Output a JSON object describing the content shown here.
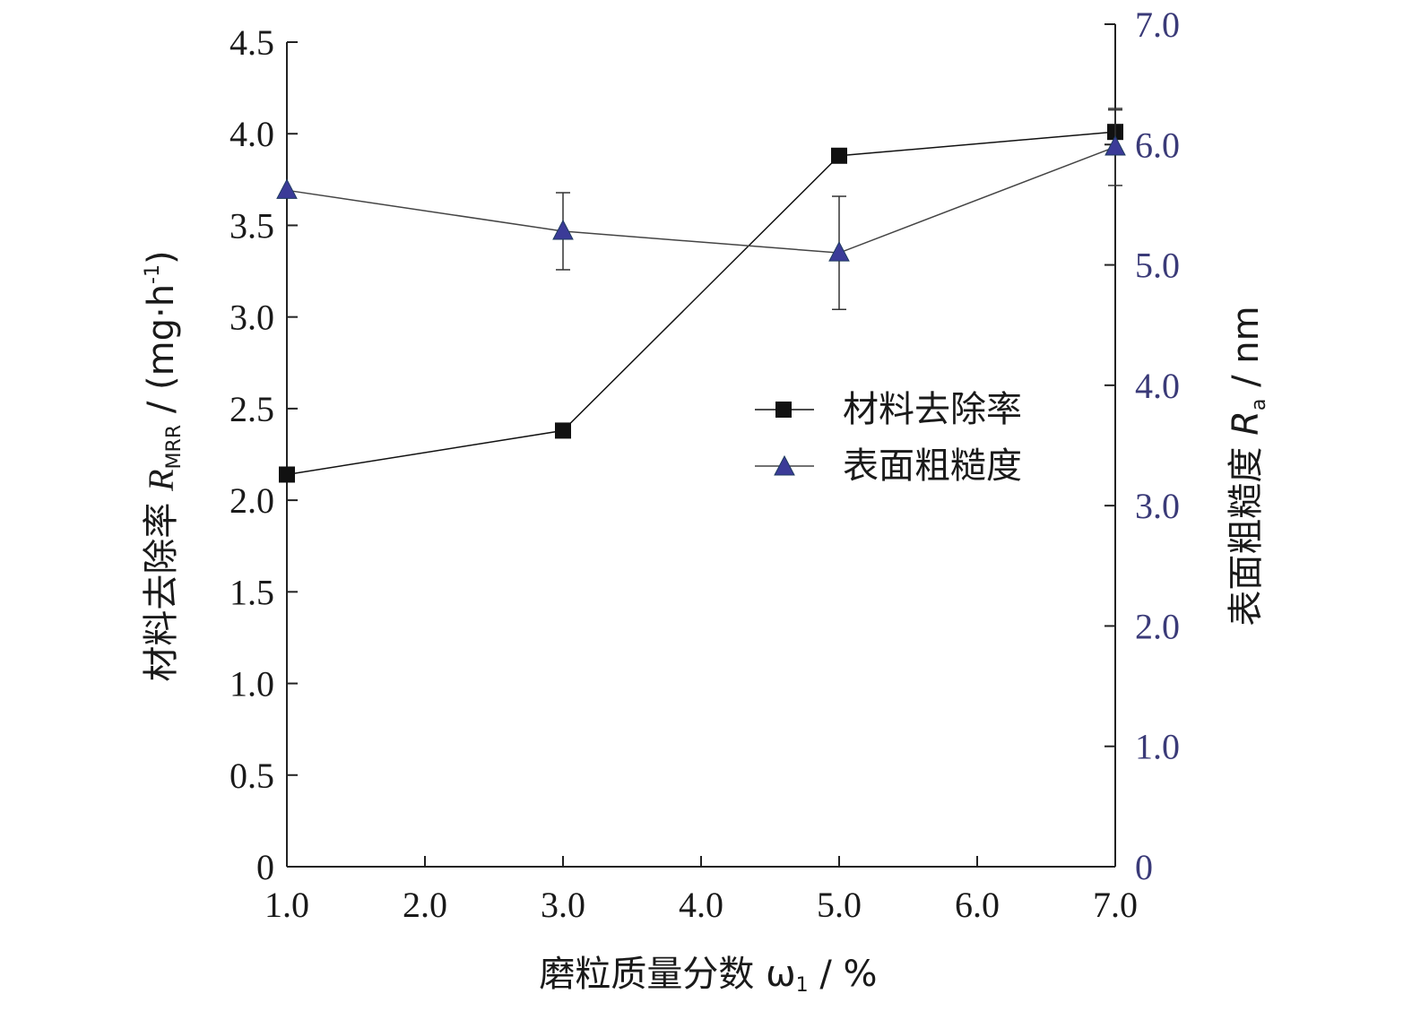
{
  "chart_data": {
    "type": "line",
    "x": [
      1.0,
      3.0,
      5.0,
      7.0
    ],
    "xticks": [
      "1.0",
      "2.0",
      "3.0",
      "4.0",
      "5.0",
      "6.0",
      "7.0"
    ],
    "xlim": [
      1.0,
      7.0
    ],
    "xlabel": "磨粒质量分数 ω",
    "xlabel_sub": "1",
    "xlabel_unit": " / %",
    "y_left": {
      "label_prefix": "材料去除率 ",
      "label_var": "R",
      "label_sub": "MRR",
      "label_unit": " / (mg·h",
      "label_sup": "-1",
      "label_close": ")",
      "lim": [
        0,
        4.5
      ],
      "ticks": [
        "0",
        "0.5",
        "1.0",
        "1.5",
        "2.0",
        "2.5",
        "3.0",
        "3.5",
        "4.0",
        "4.5"
      ]
    },
    "y_right": {
      "label_prefix": "表面粗糙度 ",
      "label_var": "R",
      "label_sub": "a",
      "label_unit": " / nm",
      "lim": [
        0,
        7.0
      ],
      "ticks": [
        "0",
        "1.0",
        "2.0",
        "3.0",
        "4.0",
        "5.0",
        "6.0",
        "7.0"
      ]
    },
    "series": [
      {
        "name": "材料去除率",
        "axis": "left",
        "marker": "square",
        "color": "#111111",
        "values": [
          2.14,
          2.38,
          3.88,
          4.01
        ],
        "errors": [
          0.0,
          0.0,
          0.0,
          0.12
        ]
      },
      {
        "name": "表面粗糙度",
        "axis": "right",
        "marker": "triangle",
        "color": "#3b3b98",
        "values": [
          5.62,
          5.28,
          5.1,
          5.98
        ],
        "errors": [
          0.0,
          0.32,
          0.47,
          0.32
        ]
      }
    ],
    "legend_position": "center-right",
    "grid": false
  }
}
